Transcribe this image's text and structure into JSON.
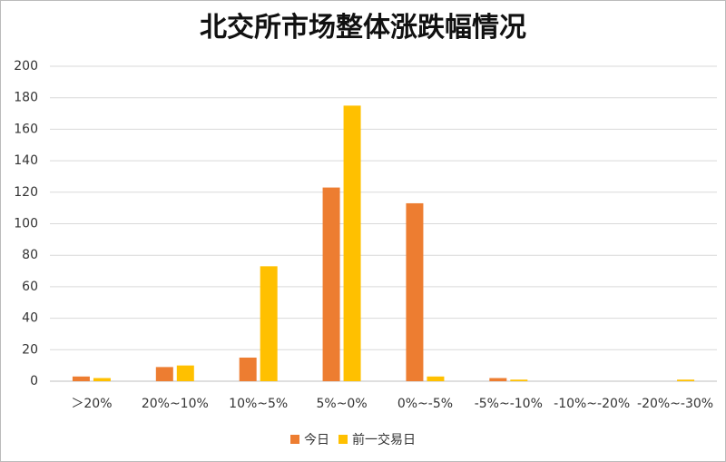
{
  "chart_data": {
    "type": "bar",
    "title": "北交所市场整体涨跌幅情况",
    "categories": [
      "＞20%",
      "20%~10%",
      "10%~5%",
      "5%~0%",
      "0%~-5%",
      "-5%~-10%",
      "-10%~-20%",
      "-20%~-30%"
    ],
    "series": [
      {
        "name": "今日",
        "color": "#ed7d31",
        "values": [
          3,
          9,
          15,
          123,
          113,
          2,
          0,
          0
        ]
      },
      {
        "name": "前一交易日",
        "color": "#ffc000",
        "values": [
          2,
          10,
          73,
          175,
          3,
          1,
          0,
          1
        ]
      }
    ],
    "ylim": [
      0,
      200
    ],
    "yticks": [
      0,
      20,
      40,
      60,
      80,
      100,
      120,
      140,
      160,
      180,
      200
    ],
    "grid": true,
    "legend": "bottom"
  }
}
